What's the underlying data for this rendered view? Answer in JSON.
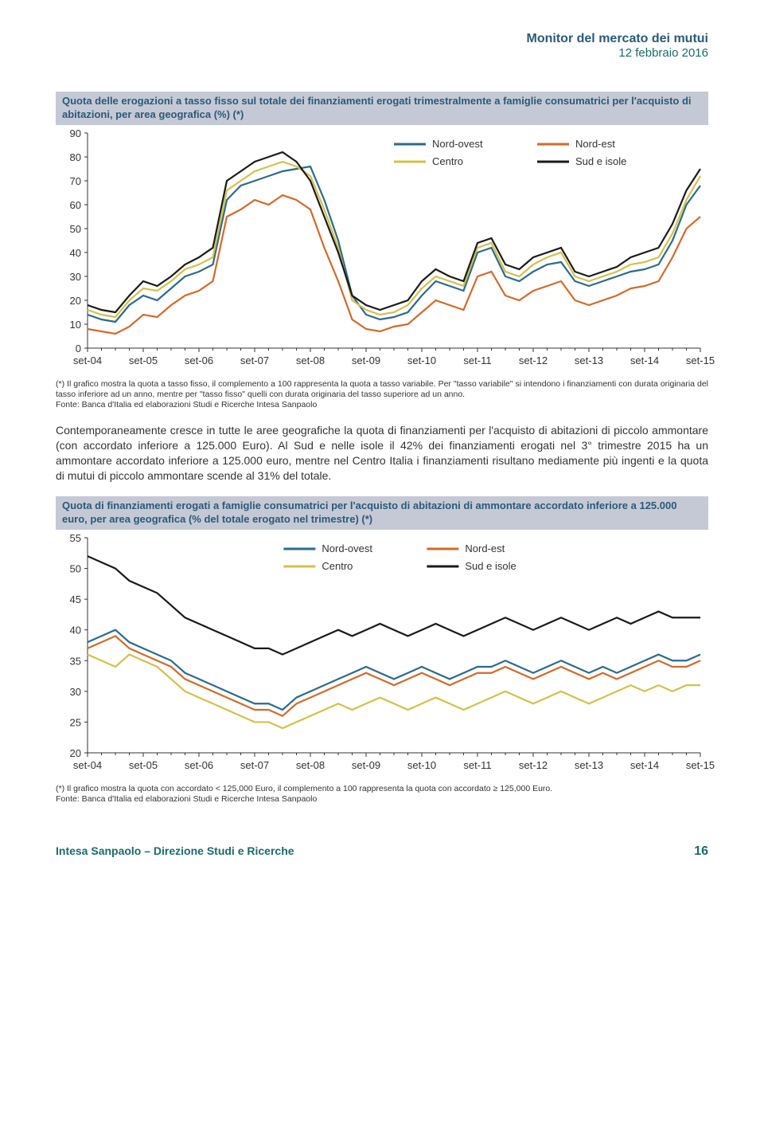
{
  "header": {
    "title": "Monitor del mercato dei mutui",
    "date": "12 febbraio 2016",
    "title_color": "#2a5a78",
    "date_color": "#1a6b6b"
  },
  "chart1": {
    "title": "Quota delle erogazioni a tasso fisso sul totale dei finanziamenti erogati trimestralmente a famiglie consumatrici per l'acquisto di abitazioni, per area geografica (%) (*)",
    "title_bg": "#c5c9d6",
    "title_color": "#2a5a78",
    "type": "line",
    "ylim": [
      0,
      90
    ],
    "ytick_step": 10,
    "x_labels": [
      "set-04",
      "set-05",
      "set-06",
      "set-07",
      "set-08",
      "set-09",
      "set-10",
      "set-11",
      "set-12",
      "set-13",
      "set-14",
      "set-15"
    ],
    "legend": [
      {
        "label": "Nord-ovest",
        "color": "#2a6b8f"
      },
      {
        "label": "Nord-est",
        "color": "#d36a2a"
      },
      {
        "label": "Centro",
        "color": "#d4c04a"
      },
      {
        "label": "Sud e isole",
        "color": "#1a1a1a"
      }
    ],
    "series": {
      "nord_ovest": [
        14,
        12,
        11,
        18,
        22,
        20,
        25,
        30,
        32,
        35,
        62,
        68,
        70,
        72,
        74,
        75,
        76,
        62,
        45,
        22,
        14,
        12,
        13,
        15,
        22,
        28,
        26,
        24,
        40,
        42,
        30,
        28,
        32,
        35,
        36,
        28,
        26,
        28,
        30,
        32,
        33,
        35,
        45,
        60,
        68
      ],
      "nord_est": [
        8,
        7,
        6,
        9,
        14,
        13,
        18,
        22,
        24,
        28,
        55,
        58,
        62,
        60,
        64,
        62,
        58,
        42,
        28,
        12,
        8,
        7,
        9,
        10,
        15,
        20,
        18,
        16,
        30,
        32,
        22,
        20,
        24,
        26,
        28,
        20,
        18,
        20,
        22,
        25,
        26,
        28,
        38,
        50,
        55
      ],
      "centro": [
        16,
        14,
        13,
        20,
        25,
        24,
        28,
        33,
        35,
        38,
        66,
        70,
        74,
        76,
        78,
        76,
        72,
        58,
        42,
        20,
        16,
        14,
        15,
        18,
        25,
        30,
        28,
        26,
        42,
        44,
        32,
        30,
        35,
        38,
        40,
        30,
        28,
        30,
        32,
        35,
        36,
        38,
        48,
        62,
        72
      ],
      "sud_isole": [
        18,
        16,
        15,
        22,
        28,
        26,
        30,
        35,
        38,
        42,
        70,
        74,
        78,
        80,
        82,
        78,
        70,
        55,
        40,
        22,
        18,
        16,
        18,
        20,
        28,
        33,
        30,
        28,
        44,
        46,
        35,
        33,
        38,
        40,
        42,
        32,
        30,
        32,
        34,
        38,
        40,
        42,
        52,
        66,
        75
      ]
    },
    "footnote": "(*) Il grafico mostra la quota a tasso fisso, il complemento a 100 rappresenta la quota a tasso variabile. Per \"tasso variabile\" si intendono i finanziamenti con durata originaria del tasso inferiore ad un anno, mentre per \"tasso fisso\" quelli con durata originaria del tasso superiore ad un anno.",
    "source": "Fonte: Banca d'Italia ed elaborazioni Studi e Ricerche Intesa Sanpaolo"
  },
  "body_paragraph": "Contemporaneamente cresce in tutte le aree geografiche la quota di finanziamenti per l'acquisto di abitazioni di piccolo ammontare (con accordato inferiore a 125.000 Euro). Al Sud e nelle isole il 42% dei finanziamenti erogati nel 3° trimestre 2015 ha un ammontare accordato inferiore a 125.000 euro, mentre nel Centro Italia i finanziamenti risultano mediamente più ingenti e la quota di mutui di piccolo ammontare scende al 31% del totale.",
  "chart2": {
    "title": "Quota di finanziamenti erogati a famiglie consumatrici per l'acquisto di abitazioni di ammontare accordato inferiore a 125.000 euro, per area geografica (% del totale erogato nel trimestre) (*)",
    "title_bg": "#c5c9d6",
    "title_color": "#2a5a78",
    "type": "line",
    "ylim": [
      20,
      55
    ],
    "ytick_step": 5,
    "x_labels": [
      "set-04",
      "set-05",
      "set-06",
      "set-07",
      "set-08",
      "set-09",
      "set-10",
      "set-11",
      "set-12",
      "set-13",
      "set-14",
      "set-15"
    ],
    "legend": [
      {
        "label": "Nord-ovest",
        "color": "#2a6b8f"
      },
      {
        "label": "Nord-est",
        "color": "#d36a2a"
      },
      {
        "label": "Centro",
        "color": "#d4c04a"
      },
      {
        "label": "Sud e isole",
        "color": "#1a1a1a"
      }
    ],
    "series": {
      "nord_ovest": [
        38,
        39,
        40,
        38,
        37,
        36,
        35,
        33,
        32,
        31,
        30,
        29,
        28,
        28,
        27,
        29,
        30,
        31,
        32,
        33,
        34,
        33,
        32,
        33,
        34,
        33,
        32,
        33,
        34,
        34,
        35,
        34,
        33,
        34,
        35,
        34,
        33,
        34,
        33,
        34,
        35,
        36,
        35,
        35,
        36
      ],
      "nord_est": [
        37,
        38,
        39,
        37,
        36,
        35,
        34,
        32,
        31,
        30,
        29,
        28,
        27,
        27,
        26,
        28,
        29,
        30,
        31,
        32,
        33,
        32,
        31,
        32,
        33,
        32,
        31,
        32,
        33,
        33,
        34,
        33,
        32,
        33,
        34,
        33,
        32,
        33,
        32,
        33,
        34,
        35,
        34,
        34,
        35
      ],
      "centro": [
        36,
        35,
        34,
        36,
        35,
        34,
        32,
        30,
        29,
        28,
        27,
        26,
        25,
        25,
        24,
        25,
        26,
        27,
        28,
        27,
        28,
        29,
        28,
        27,
        28,
        29,
        28,
        27,
        28,
        29,
        30,
        29,
        28,
        29,
        30,
        29,
        28,
        29,
        30,
        31,
        30,
        31,
        30,
        31,
        31
      ],
      "sud_isole": [
        52,
        51,
        50,
        48,
        47,
        46,
        44,
        42,
        41,
        40,
        39,
        38,
        37,
        37,
        36,
        37,
        38,
        39,
        40,
        39,
        40,
        41,
        40,
        39,
        40,
        41,
        40,
        39,
        40,
        41,
        42,
        41,
        40,
        41,
        42,
        41,
        40,
        41,
        42,
        41,
        42,
        43,
        42,
        42,
        42
      ]
    },
    "footnote": "(*) Il grafico mostra la quota con accordato < 125,000 Euro, il complemento a 100 rappresenta la quota con accordato ≥ 125,000 Euro.",
    "source": "Fonte: Banca d'Italia ed elaborazioni Studi e Ricerche Intesa Sanpaolo"
  },
  "footer": {
    "left": "Intesa Sanpaolo – Direzione Studi e Ricerche",
    "page": "16"
  }
}
